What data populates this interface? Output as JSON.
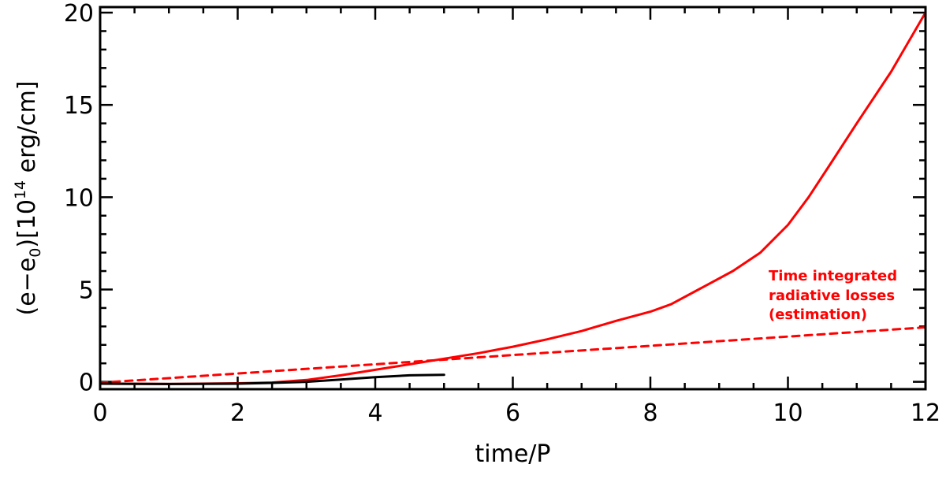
{
  "chart_data": {
    "type": "line",
    "xlabel": "time/P",
    "ylabel": {
      "prefix": "(e",
      "minus": "−",
      "e": "e",
      "sub0": "0",
      "mid": ")[10",
      "exp": "14",
      "suffix": " erg/cm]"
    },
    "xlim": [
      0,
      12
    ],
    "ylim": [
      -0.4,
      20.3
    ],
    "xticks": [
      0,
      2,
      4,
      6,
      8,
      10,
      12
    ],
    "yticks": [
      0,
      5,
      10,
      15,
      20
    ],
    "x_minor_step": 0.5,
    "y_minor_step": 1,
    "grid": false,
    "annotation": {
      "lines": [
        "Time integrated",
        "radiative losses",
        "(estimation)"
      ],
      "color": "#ff0000"
    },
    "series": [
      {
        "color": "#ff0000",
        "style": "solid",
        "x": [
          0,
          1,
          2,
          2.5,
          3,
          3.5,
          4,
          4.5,
          5,
          5.5,
          6,
          6.5,
          7,
          7.5,
          8,
          8.3,
          8.8,
          9.2,
          9.6,
          10,
          10.3,
          10.6,
          11,
          11.5,
          12
        ],
        "y": [
          -0.1,
          -0.12,
          -0.08,
          -0.04,
          0.1,
          0.35,
          0.65,
          0.95,
          1.25,
          1.55,
          1.9,
          2.3,
          2.75,
          3.3,
          3.8,
          4.2,
          5.2,
          6.0,
          7.0,
          8.5,
          10.0,
          11.7,
          14.0,
          16.8,
          20.0
        ]
      },
      {
        "color": "#ff0000",
        "style": "dashed",
        "x": [
          0,
          12
        ],
        "y": [
          -0.05,
          2.95
        ]
      },
      {
        "color": "#000000",
        "style": "solid",
        "x": [
          0,
          1,
          2,
          2.5,
          3,
          3.5,
          4,
          4.5,
          5
        ],
        "y": [
          -0.1,
          -0.12,
          -0.1,
          -0.06,
          0.0,
          0.12,
          0.25,
          0.35,
          0.38
        ]
      }
    ]
  }
}
